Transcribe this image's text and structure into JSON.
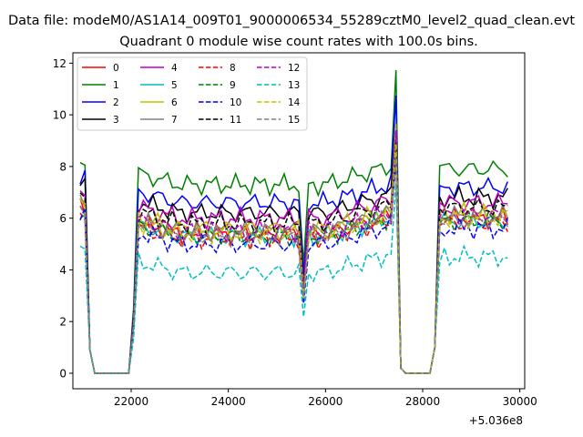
{
  "figure": {
    "suptitle": "Data file: modeM0/AS1A14_009T01_9000006534_55289cztM0_level2_quad_clean.evt",
    "title": "Quadrant 0 module wise count rates with 100.0s bins.",
    "x_offset_label": "+5.036e8"
  },
  "chart_data": {
    "type": "line",
    "title": "Quadrant 0 module wise count rates with 100.0s bins.",
    "xlabel": "",
    "ylabel": "",
    "x_offset": 503600000,
    "xlim": [
      20800,
      30100
    ],
    "ylim": [
      -0.6,
      12.4
    ],
    "xticks": [
      22000,
      24000,
      26000,
      28000,
      30000
    ],
    "yticks": [
      0,
      2,
      4,
      6,
      8,
      10,
      12
    ],
    "legend_position": "top-left",
    "grid": false,
    "x_start": 20950,
    "x_step": 100,
    "n_points": 89,
    "shared_shape": {
      "gaps": [
        [
          21150,
          21950
        ],
        [
          27550,
          28250
        ]
      ],
      "dips": [
        [
          25550,
          0.55
        ]
      ],
      "peaks": [
        [
          27450,
          1.45
        ],
        [
          28350,
          1.25
        ]
      ]
    },
    "series": [
      {
        "name": "0",
        "color": "#ff0000",
        "dash": "solid",
        "base": 5.4
      },
      {
        "name": "1",
        "color": "#008000",
        "dash": "solid",
        "base": 7.3
      },
      {
        "name": "2",
        "color": "#0000ff",
        "dash": "solid",
        "base": 6.6
      },
      {
        "name": "3",
        "color": "#000000",
        "dash": "solid",
        "base": 6.2
      },
      {
        "name": "4",
        "color": "#bf00bf",
        "dash": "solid",
        "base": 6.0
      },
      {
        "name": "5",
        "color": "#00bfbf",
        "dash": "solid",
        "base": 5.3
      },
      {
        "name": "6",
        "color": "#bfbf00",
        "dash": "solid",
        "base": 5.6
      },
      {
        "name": "7",
        "color": "#808080",
        "dash": "solid",
        "base": 5.5
      },
      {
        "name": "8",
        "color": "#ff0000",
        "dash": "dashed",
        "base": 5.2
      },
      {
        "name": "9",
        "color": "#008000",
        "dash": "dashed",
        "base": 5.3
      },
      {
        "name": "10",
        "color": "#0000ff",
        "dash": "dashed",
        "base": 5.0
      },
      {
        "name": "11",
        "color": "#000000",
        "dash": "dashed",
        "base": 5.8
      },
      {
        "name": "12",
        "color": "#bf00bf",
        "dash": "dashed",
        "base": 5.5
      },
      {
        "name": "13",
        "color": "#00bfbf",
        "dash": "dashed",
        "base": 3.9
      },
      {
        "name": "14",
        "color": "#bfbf00",
        "dash": "dashed",
        "base": 5.4
      },
      {
        "name": "15",
        "color": "#808080",
        "dash": "dashed",
        "base": 5.3
      }
    ]
  }
}
